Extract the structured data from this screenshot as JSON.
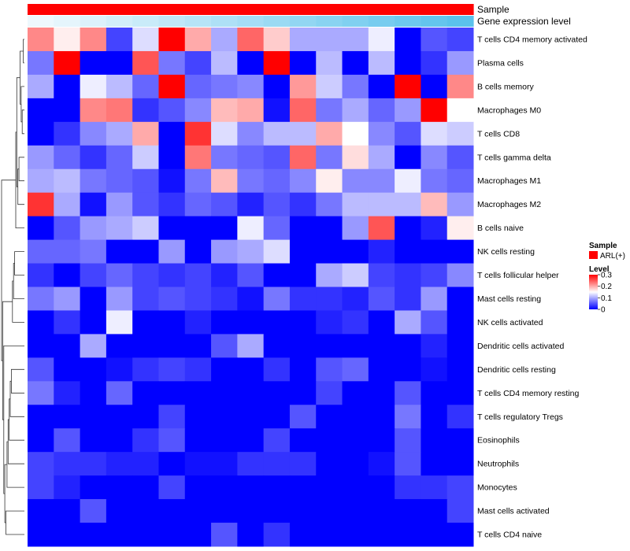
{
  "chart_data": {
    "type": "heatmap",
    "title": "",
    "annotation_tracks": [
      {
        "name": "Sample",
        "kind": "categorical",
        "value": "ARL(+)",
        "color": "#ff0000"
      },
      {
        "name": "Gene expression level",
        "kind": "continuous",
        "color_low": "#eef8fd",
        "color_high": "#5bc2ec"
      }
    ],
    "rows": [
      "T cells CD4 memory activated",
      "Plasma cells",
      "B cells memory",
      "Macrophages M0",
      "T cells CD8",
      "T cells gamma delta",
      "Macrophages M1",
      "Macrophages M2",
      "B cells naive",
      "NK cells resting",
      "T cells follicular helper",
      "Mast cells resting",
      "NK cells activated",
      "Dendritic cells activated",
      "Dendritic cells resting",
      "T cells CD4 memory resting",
      "T cells regulatory  Tregs",
      "Eosinophils",
      "Neutrophils",
      "Monocytes",
      "Mast cells activated",
      "T cells CD4 naive"
    ],
    "n_columns": 17,
    "values": [
      [
        0.22,
        0.16,
        0.22,
        0.04,
        0.13,
        0.3,
        0.2,
        0.1,
        0.24,
        0.18,
        0.1,
        0.1,
        0.1,
        0.14,
        0.0,
        0.05,
        0.04
      ],
      [
        0.07,
        0.3,
        0.0,
        0.0,
        0.25,
        0.07,
        0.04,
        0.11,
        0.0,
        0.3,
        0.0,
        0.11,
        0.0,
        0.11,
        0.0,
        0.03,
        0.09
      ],
      [
        0.1,
        0.0,
        0.14,
        0.11,
        0.06,
        0.3,
        0.06,
        0.07,
        0.08,
        0.0,
        0.21,
        0.12,
        0.07,
        0.0,
        0.3,
        0.0,
        0.22
      ],
      [
        0.0,
        0.0,
        0.22,
        0.23,
        0.03,
        0.05,
        0.08,
        0.19,
        0.2,
        0.01,
        0.24,
        0.07,
        0.1,
        0.06,
        0.09,
        0.3,
        0.15
      ],
      [
        0.0,
        0.03,
        0.08,
        0.1,
        0.2,
        0.0,
        0.27,
        0.13,
        0.08,
        0.11,
        0.11,
        0.2,
        0.15,
        0.08,
        0.05,
        0.13,
        0.12
      ],
      [
        0.09,
        0.06,
        0.03,
        0.06,
        0.12,
        0.0,
        0.23,
        0.07,
        0.06,
        0.05,
        0.24,
        0.07,
        0.17,
        0.1,
        0.0,
        0.08,
        0.05
      ],
      [
        0.1,
        0.11,
        0.07,
        0.06,
        0.05,
        0.01,
        0.07,
        0.19,
        0.07,
        0.06,
        0.08,
        0.16,
        0.08,
        0.08,
        0.14,
        0.07,
        0.06
      ],
      [
        0.27,
        0.1,
        0.01,
        0.09,
        0.05,
        0.03,
        0.06,
        0.05,
        0.02,
        0.05,
        0.03,
        0.07,
        0.11,
        0.11,
        0.11,
        0.19,
        0.09
      ],
      [
        0.0,
        0.05,
        0.09,
        0.1,
        0.12,
        0.0,
        0.0,
        0.0,
        0.14,
        0.06,
        0.0,
        0.0,
        0.09,
        0.25,
        0.0,
        0.02,
        0.16
      ],
      [
        0.06,
        0.06,
        0.07,
        0.0,
        0.0,
        0.09,
        0.0,
        0.09,
        0.1,
        0.13,
        0.0,
        0.0,
        0.0,
        0.02,
        0.0,
        0.0,
        0.0
      ],
      [
        0.03,
        0.0,
        0.04,
        0.06,
        0.04,
        0.03,
        0.04,
        0.02,
        0.05,
        0.0,
        0.0,
        0.1,
        0.12,
        0.04,
        0.03,
        0.04,
        0.08
      ],
      [
        0.07,
        0.09,
        0.0,
        0.09,
        0.04,
        0.05,
        0.04,
        0.03,
        0.01,
        0.07,
        0.03,
        0.03,
        0.02,
        0.05,
        0.03,
        0.09,
        0.0
      ],
      [
        0.0,
        0.03,
        0.0,
        0.14,
        0.0,
        0.0,
        0.02,
        0.0,
        0.0,
        0.0,
        0.0,
        0.02,
        0.03,
        0.0,
        0.1,
        0.05,
        0.0
      ],
      [
        0.0,
        0.0,
        0.1,
        0.0,
        0.0,
        0.0,
        0.0,
        0.05,
        0.1,
        0.0,
        0.0,
        0.0,
        0.0,
        0.0,
        0.0,
        0.02,
        0.0
      ],
      [
        0.05,
        0.0,
        0.0,
        0.01,
        0.03,
        0.04,
        0.03,
        0.0,
        0.0,
        0.03,
        0.0,
        0.05,
        0.06,
        0.0,
        0.0,
        0.01,
        0.0
      ],
      [
        0.07,
        0.02,
        0.0,
        0.06,
        0.0,
        0.0,
        0.0,
        0.0,
        0.0,
        0.0,
        0.0,
        0.04,
        0.0,
        0.0,
        0.05,
        0.0,
        0.0
      ],
      [
        0.0,
        0.0,
        0.0,
        0.0,
        0.0,
        0.04,
        0.0,
        0.0,
        0.0,
        0.0,
        0.05,
        0.0,
        0.0,
        0.0,
        0.07,
        0.0,
        0.03
      ],
      [
        0.0,
        0.05,
        0.0,
        0.0,
        0.03,
        0.05,
        0.0,
        0.0,
        0.0,
        0.04,
        0.0,
        0.0,
        0.0,
        0.0,
        0.05,
        0.0,
        0.0
      ],
      [
        0.04,
        0.03,
        0.03,
        0.02,
        0.02,
        0.0,
        0.01,
        0.01,
        0.03,
        0.03,
        0.03,
        0.0,
        0.0,
        0.01,
        0.05,
        0.0,
        0.0
      ],
      [
        0.04,
        0.02,
        0.0,
        0.0,
        0.0,
        0.04,
        0.0,
        0.0,
        0.0,
        0.0,
        0.0,
        0.0,
        0.0,
        0.0,
        0.03,
        0.03,
        0.04
      ],
      [
        0.0,
        0.0,
        0.05,
        0.0,
        0.0,
        0.0,
        0.0,
        0.0,
        0.0,
        0.0,
        0.0,
        0.0,
        0.0,
        0.0,
        0.0,
        0.0,
        0.04
      ],
      [
        0.0,
        0.0,
        0.0,
        0.0,
        0.0,
        0.0,
        0.0,
        0.05,
        0.0,
        0.03,
        0.0,
        0.0,
        0.0,
        0.0,
        0.0,
        0.0,
        0.0
      ]
    ],
    "color_scale": {
      "min": 0,
      "mid": 0.15,
      "max": 0.3,
      "low": "#0000ff",
      "mid_color": "#ffffff",
      "high": "#ff0000"
    },
    "legend": {
      "position": "right",
      "sample_title": "Sample",
      "sample_entries": [
        {
          "label": "ARL(+)",
          "color": "#ff0000"
        }
      ],
      "level_title": "Level",
      "level_ticks": [
        {
          "value": 0.3,
          "label": "0.3"
        },
        {
          "value": 0.2,
          "label": "0.2"
        },
        {
          "value": 0.1,
          "label": "0.1"
        },
        {
          "value": 0,
          "label": "0"
        }
      ]
    },
    "row_dendrogram": {
      "shown": true,
      "merges": [
        [
          0,
          1
        ],
        [
          3,
          4
        ],
        [
          2,
          23
        ],
        [
          22,
          24
        ],
        [
          5,
          6
        ],
        [
          26,
          7
        ],
        [
          25,
          27
        ],
        [
          28,
          8
        ],
        [
          9,
          10
        ],
        [
          30,
          11
        ],
        [
          31,
          12
        ],
        [
          14,
          15
        ],
        [
          33,
          16
        ],
        [
          34,
          17
        ],
        [
          35,
          18
        ],
        [
          36,
          19
        ],
        [
          20,
          21
        ],
        [
          37,
          38
        ],
        [
          13,
          39
        ],
        [
          32,
          40
        ],
        [
          29,
          41
        ]
      ]
    }
  }
}
